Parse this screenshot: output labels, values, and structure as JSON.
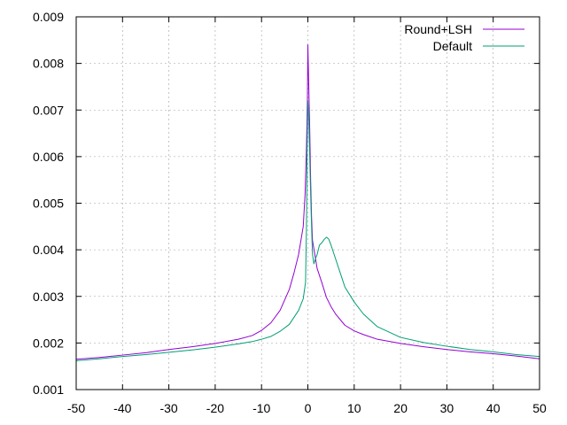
{
  "chart_data": {
    "type": "line",
    "title": "",
    "xlabel": "",
    "ylabel": "",
    "xlim": [
      -50,
      50
    ],
    "ylim": [
      0.001,
      0.009
    ],
    "xticks": [
      "-50",
      "-40",
      "-30",
      "-20",
      "-10",
      "0",
      "10",
      "20",
      "30",
      "40",
      "50"
    ],
    "yticks": [
      "0.001",
      "0.002",
      "0.003",
      "0.004",
      "0.005",
      "0.006",
      "0.007",
      "0.008",
      "0.009"
    ],
    "grid": true,
    "legend_position": "top-right",
    "series": [
      {
        "name": "Round+LSH",
        "color": "#9400d3",
        "points": [
          [
            -50,
            0.00165
          ],
          [
            -45,
            0.00169
          ],
          [
            -40,
            0.00174
          ],
          [
            -35,
            0.00179
          ],
          [
            -30,
            0.00186
          ],
          [
            -25,
            0.00192
          ],
          [
            -20,
            0.00199
          ],
          [
            -15,
            0.00208
          ],
          [
            -12,
            0.00216
          ],
          [
            -10,
            0.00227
          ],
          [
            -8,
            0.00243
          ],
          [
            -6,
            0.0027
          ],
          [
            -4,
            0.00315
          ],
          [
            -3,
            0.0035
          ],
          [
            -2,
            0.0039
          ],
          [
            -1.5,
            0.0042
          ],
          [
            -1,
            0.0045
          ],
          [
            -0.6,
            0.0052
          ],
          [
            -0.3,
            0.0062
          ],
          [
            -0.1,
            0.0072
          ],
          [
            0,
            0.0084
          ],
          [
            0.2,
            0.0075
          ],
          [
            0.4,
            0.0066
          ],
          [
            0.6,
            0.0055
          ],
          [
            0.8,
            0.0047
          ],
          [
            1,
            0.0042
          ],
          [
            1.5,
            0.0039
          ],
          [
            2,
            0.0036
          ],
          [
            3,
            0.0033
          ],
          [
            4,
            0.00298
          ],
          [
            5,
            0.00278
          ],
          [
            6,
            0.00262
          ],
          [
            8,
            0.00238
          ],
          [
            10,
            0.00226
          ],
          [
            12,
            0.00218
          ],
          [
            15,
            0.00208
          ],
          [
            20,
            0.00199
          ],
          [
            25,
            0.00192
          ],
          [
            30,
            0.00186
          ],
          [
            35,
            0.00181
          ],
          [
            40,
            0.00177
          ],
          [
            45,
            0.00172
          ],
          [
            50,
            0.00166
          ]
        ]
      },
      {
        "name": "Default",
        "color": "#009e73",
        "points": [
          [
            -50,
            0.00162
          ],
          [
            -45,
            0.00166
          ],
          [
            -40,
            0.00171
          ],
          [
            -35,
            0.00175
          ],
          [
            -30,
            0.0018
          ],
          [
            -25,
            0.00185
          ],
          [
            -20,
            0.00191
          ],
          [
            -15,
            0.00198
          ],
          [
            -12,
            0.00203
          ],
          [
            -10,
            0.00208
          ],
          [
            -8,
            0.00214
          ],
          [
            -6,
            0.00225
          ],
          [
            -4,
            0.0024
          ],
          [
            -3,
            0.00255
          ],
          [
            -2,
            0.0027
          ],
          [
            -1,
            0.00295
          ],
          [
            -0.5,
            0.0033
          ],
          [
            -0.3,
            0.0045
          ],
          [
            -0.15,
            0.0062
          ],
          [
            0,
            0.0072
          ],
          [
            0.2,
            0.0068
          ],
          [
            0.4,
            0.006
          ],
          [
            0.6,
            0.0052
          ],
          [
            0.8,
            0.0045
          ],
          [
            1,
            0.0039
          ],
          [
            1.3,
            0.0037
          ],
          [
            1.6,
            0.0038
          ],
          [
            2,
            0.0039
          ],
          [
            2.5,
            0.0041
          ],
          [
            3,
            0.00415
          ],
          [
            3.5,
            0.00422
          ],
          [
            4,
            0.00427
          ],
          [
            4.5,
            0.00423
          ],
          [
            5,
            0.0041
          ],
          [
            6,
            0.0038
          ],
          [
            7,
            0.0035
          ],
          [
            8,
            0.0032
          ],
          [
            10,
            0.00288
          ],
          [
            12,
            0.00262
          ],
          [
            15,
            0.00235
          ],
          [
            20,
            0.00212
          ],
          [
            25,
            0.00201
          ],
          [
            30,
            0.00193
          ],
          [
            35,
            0.00186
          ],
          [
            40,
            0.00181
          ],
          [
            45,
            0.00175
          ],
          [
            50,
            0.00171
          ]
        ]
      }
    ]
  }
}
